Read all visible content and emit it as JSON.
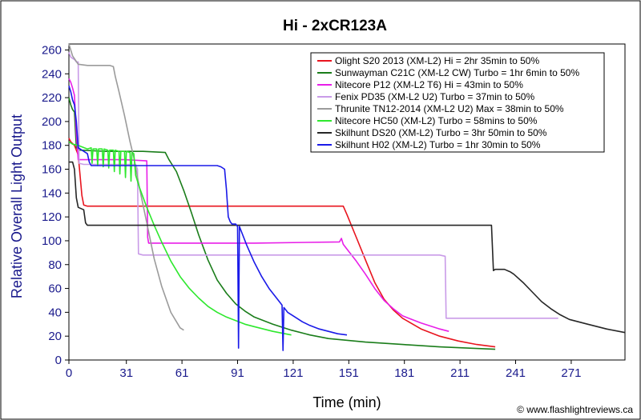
{
  "chart_data": {
    "type": "line",
    "title": "Hi - 2xCR123A",
    "xlabel": "Time (min)",
    "ylabel": "Relative Overall Light Output",
    "xlim": [
      0,
      300
    ],
    "ylim": [
      0,
      265
    ],
    "xticks": [
      0,
      31,
      61,
      91,
      121,
      151,
      181,
      211,
      241,
      271
    ],
    "yticks": [
      0,
      20,
      40,
      60,
      80,
      100,
      120,
      140,
      160,
      180,
      200,
      220,
      240,
      260
    ],
    "grid": false,
    "legend_position": "top-right",
    "credit": "© www.flashlightreviews.ca",
    "series": [
      {
        "name": "Olight S20 2013 (XM-L2) Hi = 2hr 35min to 50%",
        "color": "#e8141e",
        "points": [
          [
            0,
            186
          ],
          [
            1,
            183
          ],
          [
            3,
            180
          ],
          [
            5,
            172
          ],
          [
            7,
            138
          ],
          [
            8,
            130
          ],
          [
            10,
            129
          ],
          [
            60,
            129
          ],
          [
            100,
            129
          ],
          [
            140,
            129
          ],
          [
            148,
            129
          ],
          [
            150,
            122
          ],
          [
            155,
            103
          ],
          [
            160,
            84
          ],
          [
            165,
            65
          ],
          [
            170,
            51
          ],
          [
            175,
            42
          ],
          [
            180,
            35
          ],
          [
            190,
            26
          ],
          [
            200,
            20
          ],
          [
            210,
            16
          ],
          [
            220,
            13
          ],
          [
            230,
            11
          ]
        ]
      },
      {
        "name": "Sunwayman C21C (XM-L2 CW) Turbo = 1hr 6min to 50%",
        "color": "#1a7d1a",
        "points": [
          [
            0,
            220
          ],
          [
            1,
            214
          ],
          [
            2,
            210
          ],
          [
            3,
            208
          ],
          [
            4,
            178
          ],
          [
            6,
            176
          ],
          [
            20,
            175
          ],
          [
            40,
            175
          ],
          [
            52,
            174
          ],
          [
            54,
            168
          ],
          [
            58,
            158
          ],
          [
            62,
            142
          ],
          [
            66,
            124
          ],
          [
            70,
            105
          ],
          [
            75,
            84
          ],
          [
            80,
            67
          ],
          [
            85,
            56
          ],
          [
            90,
            47
          ],
          [
            95,
            41
          ],
          [
            100,
            36
          ],
          [
            110,
            30
          ],
          [
            120,
            25
          ],
          [
            130,
            21
          ],
          [
            140,
            18
          ],
          [
            160,
            15
          ],
          [
            180,
            13
          ],
          [
            200,
            11
          ],
          [
            215,
            10
          ],
          [
            230,
            9
          ]
        ]
      },
      {
        "name": "Nitecore P12 (XM-L2 T6) Hi = 43min to 50%",
        "color": "#e81ee8",
        "points": [
          [
            0,
            236
          ],
          [
            1,
            233
          ],
          [
            2,
            228
          ],
          [
            3,
            222
          ],
          [
            4,
            190
          ],
          [
            5,
            168
          ],
          [
            30,
            168
          ],
          [
            42,
            167
          ],
          [
            42.5,
            103
          ],
          [
            43,
            98
          ],
          [
            60,
            98
          ],
          [
            100,
            98
          ],
          [
            146,
            99
          ],
          [
            147,
            102
          ],
          [
            148,
            97
          ],
          [
            150,
            93
          ],
          [
            155,
            83
          ],
          [
            160,
            72
          ],
          [
            165,
            60
          ],
          [
            170,
            50
          ],
          [
            175,
            43
          ],
          [
            180,
            37
          ],
          [
            190,
            31
          ],
          [
            200,
            26
          ],
          [
            205,
            24
          ]
        ]
      },
      {
        "name": "Fenix PD35 (XM-L2 U2) Turbo = 37min to 50%",
        "color": "#c99be8",
        "points": [
          [
            0,
            258
          ],
          [
            1,
            254
          ],
          [
            3,
            252
          ],
          [
            4,
            250
          ],
          [
            5,
            250
          ],
          [
            5.5,
            165
          ],
          [
            8,
            164
          ],
          [
            36,
            164
          ],
          [
            37,
            160
          ],
          [
            37.5,
            89
          ],
          [
            40,
            88
          ],
          [
            100,
            88
          ],
          [
            150,
            88
          ],
          [
            200,
            88
          ],
          [
            203,
            87
          ],
          [
            203.5,
            35
          ],
          [
            220,
            35
          ],
          [
            240,
            35
          ],
          [
            264,
            35
          ]
        ]
      },
      {
        "name": "Thrunite TN12-2014 (XM-L2 U2) Max = 38min to 50%",
        "color": "#9b9b9b",
        "points": [
          [
            0,
            265
          ],
          [
            2,
            255
          ],
          [
            5,
            248
          ],
          [
            10,
            247
          ],
          [
            22,
            247
          ],
          [
            24,
            246
          ],
          [
            25,
            238
          ],
          [
            27,
            225
          ],
          [
            30,
            205
          ],
          [
            33,
            183
          ],
          [
            35,
            170
          ],
          [
            38,
            145
          ],
          [
            42,
            115
          ],
          [
            46,
            85
          ],
          [
            50,
            62
          ],
          [
            55,
            40
          ],
          [
            60,
            27
          ],
          [
            62,
            25
          ]
        ]
      },
      {
        "name": "Nitecore HC50 (XM-L2) Turbo = 58mins to 50%",
        "color": "#2ee82e",
        "points": [
          [
            0,
            183
          ],
          [
            2,
            181
          ],
          [
            5,
            180
          ],
          [
            10,
            177
          ],
          [
            12,
            178
          ],
          [
            12.5,
            165
          ],
          [
            13,
            177
          ],
          [
            15,
            177
          ],
          [
            15.5,
            163
          ],
          [
            16,
            177
          ],
          [
            18,
            177
          ],
          [
            18.5,
            162
          ],
          [
            19,
            177
          ],
          [
            21,
            176
          ],
          [
            21.5,
            161
          ],
          [
            22,
            176
          ],
          [
            24,
            176
          ],
          [
            24.5,
            158
          ],
          [
            25,
            176
          ],
          [
            27,
            175
          ],
          [
            27.5,
            156
          ],
          [
            28,
            175
          ],
          [
            30,
            175
          ],
          [
            30.5,
            153
          ],
          [
            31,
            175
          ],
          [
            33,
            174
          ],
          [
            33.5,
            150
          ],
          [
            34,
            174
          ],
          [
            35,
            173
          ],
          [
            36,
            155
          ],
          [
            38,
            145
          ],
          [
            42,
            128
          ],
          [
            46,
            113
          ],
          [
            50,
            99
          ],
          [
            55,
            83
          ],
          [
            60,
            70
          ],
          [
            65,
            60
          ],
          [
            70,
            52
          ],
          [
            75,
            45
          ],
          [
            80,
            40
          ],
          [
            85,
            36
          ],
          [
            90,
            33
          ],
          [
            95,
            30
          ],
          [
            100,
            28
          ],
          [
            110,
            24
          ],
          [
            120,
            21
          ]
        ]
      },
      {
        "name": "Skilhunt DS20 (XM-L2) Turbo = 3hr 50min to 50%",
        "color": "#262626",
        "points": [
          [
            0,
            166
          ],
          [
            2,
            166
          ],
          [
            3,
            160
          ],
          [
            4,
            136
          ],
          [
            5,
            128
          ],
          [
            8,
            126
          ],
          [
            9,
            115
          ],
          [
            10,
            113
          ],
          [
            60,
            113
          ],
          [
            100,
            113
          ],
          [
            150,
            113
          ],
          [
            200,
            113
          ],
          [
            228,
            113
          ],
          [
            229,
            75
          ],
          [
            230,
            76
          ],
          [
            235,
            76
          ],
          [
            238,
            74
          ],
          [
            240,
            72
          ],
          [
            245,
            65
          ],
          [
            250,
            57
          ],
          [
            255,
            49
          ],
          [
            260,
            43
          ],
          [
            265,
            38
          ],
          [
            270,
            34
          ],
          [
            280,
            30
          ],
          [
            290,
            26
          ],
          [
            300,
            23
          ]
        ]
      },
      {
        "name": "Skilhunt H02 (XM-L2) Turbo = 1hr 30min to 50%",
        "color": "#1a1ae8",
        "points": [
          [
            0,
            230
          ],
          [
            1,
            225
          ],
          [
            2,
            218
          ],
          [
            3,
            214
          ],
          [
            4,
            200
          ],
          [
            5,
            178
          ],
          [
            6,
            177
          ],
          [
            10,
            173
          ],
          [
            11,
            166
          ],
          [
            12,
            163
          ],
          [
            40,
            163
          ],
          [
            80,
            163
          ],
          [
            82,
            162
          ],
          [
            84,
            160
          ],
          [
            85,
            143
          ],
          [
            86,
            120
          ],
          [
            87,
            116
          ],
          [
            88,
            114
          ],
          [
            90,
            114
          ],
          [
            91,
            112
          ],
          [
            91.5,
            10
          ],
          [
            92,
            112
          ],
          [
            93,
            108
          ],
          [
            96,
            96
          ],
          [
            100,
            82
          ],
          [
            104,
            70
          ],
          [
            108,
            60
          ],
          [
            112,
            52
          ],
          [
            115,
            46
          ],
          [
            115.5,
            8
          ],
          [
            116,
            44
          ],
          [
            118,
            40
          ],
          [
            122,
            36
          ],
          [
            126,
            32
          ],
          [
            130,
            29
          ],
          [
            135,
            26
          ],
          [
            140,
            24
          ],
          [
            145,
            22
          ],
          [
            150,
            21
          ]
        ]
      }
    ]
  }
}
